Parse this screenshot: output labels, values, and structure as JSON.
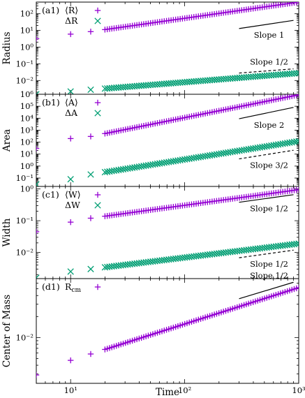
{
  "figure": {
    "xlabel": "Time",
    "x_ticks": [
      {
        "v": 5,
        "label": ""
      },
      {
        "v": 10,
        "label": "10¹"
      },
      {
        "v": 100,
        "label": "10²"
      },
      {
        "v": 1000,
        "label": "10³"
      }
    ],
    "colors": {
      "purple": "#9400d3",
      "green": "#009e73"
    }
  },
  "chart_data": [
    {
      "type": "scatter",
      "panel": "(a1)",
      "ylabel": "Radius",
      "xscale": "log",
      "yscale": "log",
      "xlim": [
        5,
        1000
      ],
      "ylim": [
        0.0015,
        500
      ],
      "y_ticks": [
        {
          "v": 0.01,
          "label": "10⁻²"
        },
        {
          "v": 0.1,
          "label": "10⁻¹"
        },
        {
          "v": 1,
          "label": "10⁰"
        },
        {
          "v": 10,
          "label": "10¹"
        },
        {
          "v": 100,
          "label": "10²"
        }
      ],
      "series": [
        {
          "name": "⟨R⟩",
          "marker": "plus",
          "color": "#9400d3",
          "x_start": 5,
          "x_end": 1000,
          "y_start": 3.2,
          "y_end": 500,
          "note_first": [
            5,
            3.2
          ],
          "note_second": [
            10,
            6.0
          ],
          "note_third": [
            15,
            8.5
          ]
        },
        {
          "name": "ΔR",
          "marker": "cross",
          "color": "#009e73",
          "x_start": 5,
          "x_end": 1000,
          "y_start": 0.0015,
          "y_end": 0.028,
          "note_first": [
            5,
            0.0015
          ],
          "note_second": [
            10,
            0.0022
          ],
          "note_third": [
            15,
            0.0028
          ]
        }
      ],
      "slope_lines": [
        {
          "label": "Slope 1",
          "style": "solid",
          "x": [
            300,
            900
          ],
          "y": [
            13,
            40
          ],
          "label_pos": "below"
        },
        {
          "label": "Slope 1/2",
          "style": "dashed",
          "x": [
            300,
            900
          ],
          "y": [
            0.028,
            0.05
          ],
          "label_pos": "above"
        }
      ]
    },
    {
      "type": "scatter",
      "panel": "(b1)",
      "ylabel": "Area",
      "xscale": "log",
      "yscale": "log",
      "xlim": [
        5,
        1000
      ],
      "ylim": [
        0.02,
        1000000
      ],
      "y_ticks": [
        {
          "v": 0.1,
          "label": "10⁻¹"
        },
        {
          "v": 1,
          "label": "10⁰"
        },
        {
          "v": 10,
          "label": "10¹"
        },
        {
          "v": 100,
          "label": "10²"
        },
        {
          "v": 1000,
          "label": "10³"
        },
        {
          "v": 10000,
          "label": "10⁴"
        },
        {
          "v": 100000,
          "label": "10⁵"
        },
        {
          "v": 1000000,
          "label": "10⁶"
        }
      ],
      "series": [
        {
          "name": "⟨A⟩",
          "marker": "plus",
          "color": "#9400d3",
          "x_start": 5,
          "x_end": 1000,
          "y_start": 30,
          "y_end": 900000,
          "note_first": [
            5,
            30
          ],
          "note_second": [
            10,
            200
          ],
          "note_third": [
            15,
            300
          ]
        },
        {
          "name": "ΔA",
          "marker": "cross",
          "color": "#009e73",
          "x_start": 5,
          "x_end": 1000,
          "y_start": 0.03,
          "y_end": 120,
          "note_first": [
            5,
            0.03
          ],
          "note_second": [
            10,
            0.08
          ],
          "note_third": [
            15,
            0.2
          ]
        }
      ],
      "slope_lines": [
        {
          "label": "Slope 2",
          "style": "solid",
          "x": [
            300,
            900
          ],
          "y": [
            9000,
            80000
          ],
          "label_pos": "below"
        },
        {
          "label": "Slope 3/2",
          "style": "dashed",
          "x": [
            300,
            900
          ],
          "y": [
            4,
            21
          ],
          "label_pos": "below"
        }
      ]
    },
    {
      "type": "scatter",
      "panel": "(c1)",
      "ylabel": "Width",
      "xscale": "log",
      "yscale": "log",
      "xlim": [
        5,
        1000
      ],
      "ylim": [
        0.0015,
        1.2
      ],
      "y_ticks": [
        {
          "v": 0.01,
          "label": "10⁻²"
        },
        {
          "v": 0.1,
          "label": "10⁻¹"
        },
        {
          "v": 1,
          "label": "10⁰"
        }
      ],
      "series": [
        {
          "name": "⟨W⟩",
          "marker": "plus",
          "color": "#9400d3",
          "x_start": 5,
          "x_end": 1000,
          "y_start": 0.045,
          "y_end": 0.95,
          "note_first": [
            5,
            0.045
          ],
          "note_second": [
            10,
            0.09
          ],
          "note_third": [
            15,
            0.12
          ]
        },
        {
          "name": "ΔW",
          "marker": "cross",
          "color": "#009e73",
          "x_start": 5,
          "x_end": 1000,
          "y_start": 0.0016,
          "y_end": 0.019,
          "note_first": [
            5,
            0.0016
          ],
          "note_second": [
            10,
            0.0025
          ],
          "note_third": [
            15,
            0.003
          ]
        }
      ],
      "slope_lines": [
        {
          "label": "Slope 1/2",
          "style": "solid",
          "x": [
            300,
            900
          ],
          "y": [
            0.38,
            0.66
          ],
          "label_pos": "below"
        },
        {
          "label": "Slope 1/2",
          "style": "dashed",
          "x": [
            300,
            900
          ],
          "y": [
            0.0068,
            0.0118
          ],
          "label_pos": "below"
        }
      ]
    },
    {
      "type": "scatter",
      "panel": "(d1)",
      "ylabel": "Center of Mass",
      "xscale": "log",
      "yscale": "log",
      "xlim": [
        5,
        1000
      ],
      "ylim": [
        0.0022,
        0.07
      ],
      "y_ticks": [
        {
          "v": 0.01,
          "label": "10⁻²"
        }
      ],
      "series": [
        {
          "name": "R_cm",
          "marker": "plus",
          "color": "#9400d3",
          "x_start": 5,
          "x_end": 1000,
          "y_start": 0.0029,
          "y_end": 0.052,
          "note_first": [
            5,
            0.0029
          ],
          "note_second": [
            10,
            0.0047
          ],
          "note_third": [
            15,
            0.0058
          ]
        }
      ],
      "slope_lines": [
        {
          "label": "Slope 1/2",
          "style": "solid",
          "x": [
            300,
            900
          ],
          "y": [
            0.036,
            0.062
          ],
          "label_pos": "above"
        }
      ]
    }
  ]
}
